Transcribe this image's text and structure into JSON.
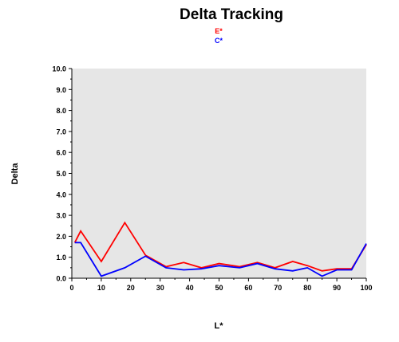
{
  "chart_data": {
    "type": "line",
    "title": "Delta Tracking",
    "xlabel": "L*",
    "ylabel": "Delta",
    "xlim": [
      0,
      100
    ],
    "ylim": [
      0,
      10
    ],
    "x_ticks": [
      "0",
      "10",
      "20",
      "30",
      "40",
      "50",
      "60",
      "70",
      "80",
      "90",
      "100"
    ],
    "y_ticks": [
      "0.0",
      "1.0",
      "2.0",
      "3.0",
      "4.0",
      "5.0",
      "6.0",
      "7.0",
      "8.0",
      "9.0",
      "10.0"
    ],
    "grid": false,
    "legend_position": "top-center",
    "plot_background": "#e6e6e6",
    "series": [
      {
        "name": "E*",
        "color": "#ff0000",
        "points": [
          [
            1,
            1.7
          ],
          [
            3,
            2.25
          ],
          [
            10,
            0.8
          ],
          [
            18,
            2.65
          ],
          [
            25,
            1.1
          ],
          [
            32,
            0.55
          ],
          [
            38,
            0.75
          ],
          [
            44,
            0.5
          ],
          [
            50,
            0.7
          ],
          [
            57,
            0.55
          ],
          [
            63,
            0.75
          ],
          [
            69,
            0.5
          ],
          [
            75,
            0.8
          ],
          [
            80,
            0.6
          ],
          [
            85,
            0.35
          ],
          [
            90,
            0.45
          ],
          [
            95,
            0.45
          ],
          [
            100,
            1.6
          ]
        ]
      },
      {
        "name": "C*",
        "color": "#0000ff",
        "points": [
          [
            1,
            1.7
          ],
          [
            3,
            1.7
          ],
          [
            10,
            0.1
          ],
          [
            18,
            0.5
          ],
          [
            25,
            1.05
          ],
          [
            32,
            0.5
          ],
          [
            38,
            0.4
          ],
          [
            44,
            0.45
          ],
          [
            50,
            0.6
          ],
          [
            57,
            0.5
          ],
          [
            63,
            0.7
          ],
          [
            69,
            0.45
          ],
          [
            75,
            0.35
          ],
          [
            80,
            0.5
          ],
          [
            85,
            0.1
          ],
          [
            90,
            0.4
          ],
          [
            95,
            0.4
          ],
          [
            100,
            1.65
          ]
        ]
      }
    ]
  }
}
